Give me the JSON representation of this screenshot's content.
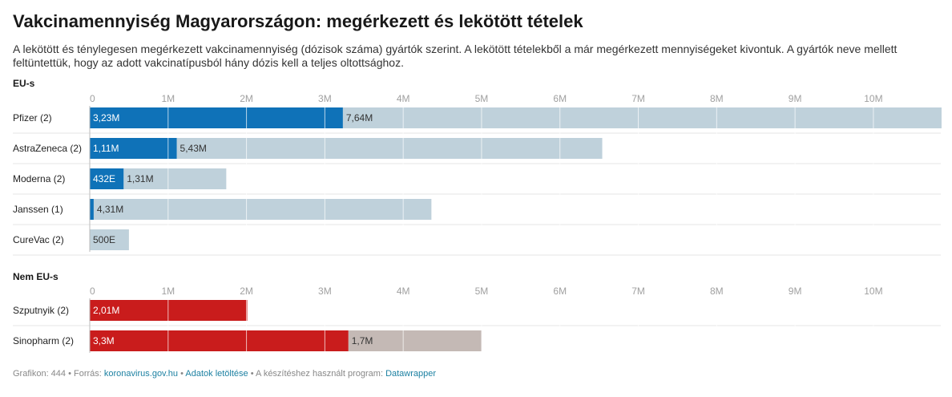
{
  "header": {
    "title": "Vakcinamennyiség Magyarországon: megérkezett és lekötött tételek",
    "subtitle": "A lekötött és ténylegesen megérkezett vakcinamennyiség (dózisok száma) gyártók szerint. A lekötött tételekből a már megérkezett mennyiségeket kivontuk. A gyártók neve mellett feltüntettük, hogy az adott vakcinatípusból hány dózis kell a teljes oltottsághoz."
  },
  "colors": {
    "eu_arrived": "#0f72b8",
    "eu_committed": "#bfd1db",
    "non_eu_arrived": "#c91c1c",
    "non_eu_committed": "#c4b9b5",
    "tick_text": "#a0a0a0",
    "gridline": "#ffffff"
  },
  "chart_data": [
    {
      "type": "bar",
      "orientation": "horizontal",
      "stacked": true,
      "group_label": "EU-s",
      "tick_labels": [
        "0",
        "1M",
        "2M",
        "3M",
        "4M",
        "5M",
        "6M",
        "7M",
        "8M",
        "9M",
        "10M"
      ],
      "xlim": [
        0,
        10860000
      ],
      "series": [
        {
          "key": "arrived",
          "color_key": "eu_arrived"
        },
        {
          "key": "committed_remaining",
          "color_key": "eu_committed"
        }
      ],
      "rows": [
        {
          "label": "Pfizer (2)",
          "arrived": 3230000,
          "arrived_label": "3,23M",
          "committed_remaining": 7640000,
          "committed_label": "7,64M"
        },
        {
          "label": "AstraZeneca (2)",
          "arrived": 1110000,
          "arrived_label": "1,11M",
          "committed_remaining": 5430000,
          "committed_label": "5,43M"
        },
        {
          "label": "Moderna (2)",
          "arrived": 432000,
          "arrived_label": "432E",
          "committed_remaining": 1310000,
          "committed_label": "1,31M"
        },
        {
          "label": "Janssen (1)",
          "arrived": 50000,
          "arrived_label": "",
          "committed_remaining": 4310000,
          "committed_label": "4,31M"
        },
        {
          "label": "CureVac (2)",
          "arrived": 0,
          "arrived_label": "",
          "committed_remaining": 500000,
          "committed_label": "500E"
        }
      ]
    },
    {
      "type": "bar",
      "orientation": "horizontal",
      "stacked": true,
      "group_label": "Nem EU-s",
      "tick_labels": [
        "0",
        "1M",
        "2M",
        "3M",
        "4M",
        "5M",
        "6M",
        "7M",
        "8M",
        "9M",
        "10M"
      ],
      "xlim": [
        0,
        10860000
      ],
      "series": [
        {
          "key": "arrived",
          "color_key": "non_eu_arrived"
        },
        {
          "key": "committed_remaining",
          "color_key": "non_eu_committed"
        }
      ],
      "rows": [
        {
          "label": "Szputnyik (2)",
          "arrived": 2010000,
          "arrived_label": "2,01M",
          "committed_remaining": 0,
          "committed_label": ""
        },
        {
          "label": "Sinopharm (2)",
          "arrived": 3300000,
          "arrived_label": "3,3M",
          "committed_remaining": 1700000,
          "committed_label": "1,7M"
        }
      ]
    }
  ],
  "footer": {
    "prefix": "Grafikon: 444 • Forrás: ",
    "source_link": "koronavirus.gov.hu",
    "sep1": " • ",
    "download_link": "Adatok letöltése",
    "sep2": " • A készítéshez használt program: ",
    "tool_link": "Datawrapper"
  }
}
